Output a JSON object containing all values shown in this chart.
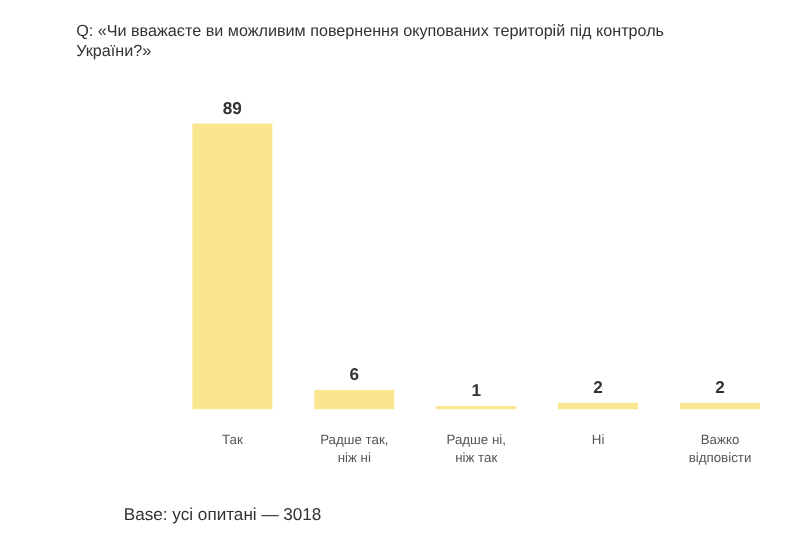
{
  "chart_data": {
    "type": "bar",
    "title": [
      "Q: «Чи вважаєте ви можливим повернення окупованих територій під контроль",
      "України?»"
    ],
    "categories": [
      "Так",
      "Радше так,\nніж ні",
      "Радше ні,\nніж так",
      "Ні",
      "Важко\nвідповісти"
    ],
    "values": [
      89,
      6,
      1,
      2,
      2
    ],
    "color": "#f9e68f",
    "data_labels": true,
    "grid": false,
    "annotations": [
      "Base: усі опитані — 3018"
    ]
  }
}
